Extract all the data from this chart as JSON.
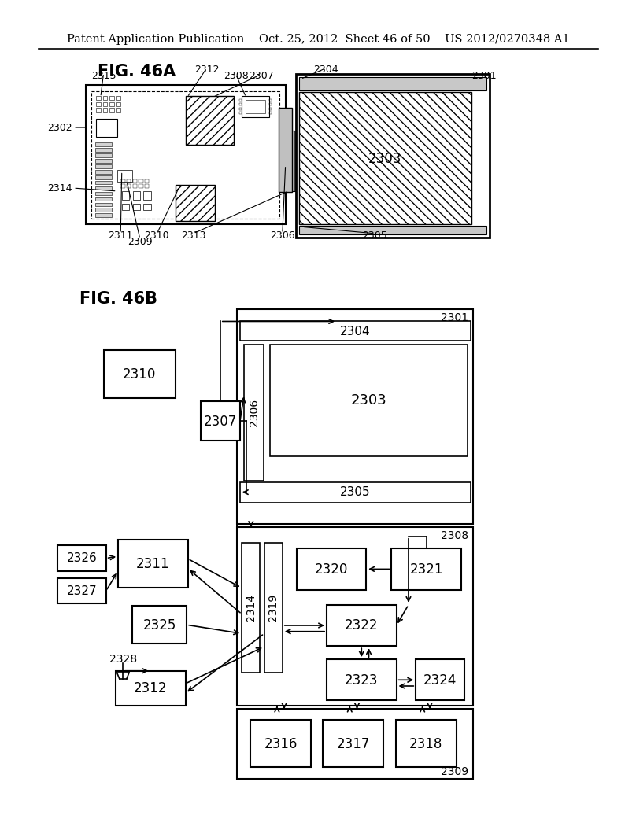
{
  "title": "Patent Application Publication    Oct. 25, 2012  Sheet 46 of 50    US 2012/0270348 A1",
  "fig46a_label": "FIG. 46A",
  "fig46b_label": "FIG. 46B",
  "bg_color": "#ffffff",
  "lc": "#000000",
  "tc": "#000000"
}
